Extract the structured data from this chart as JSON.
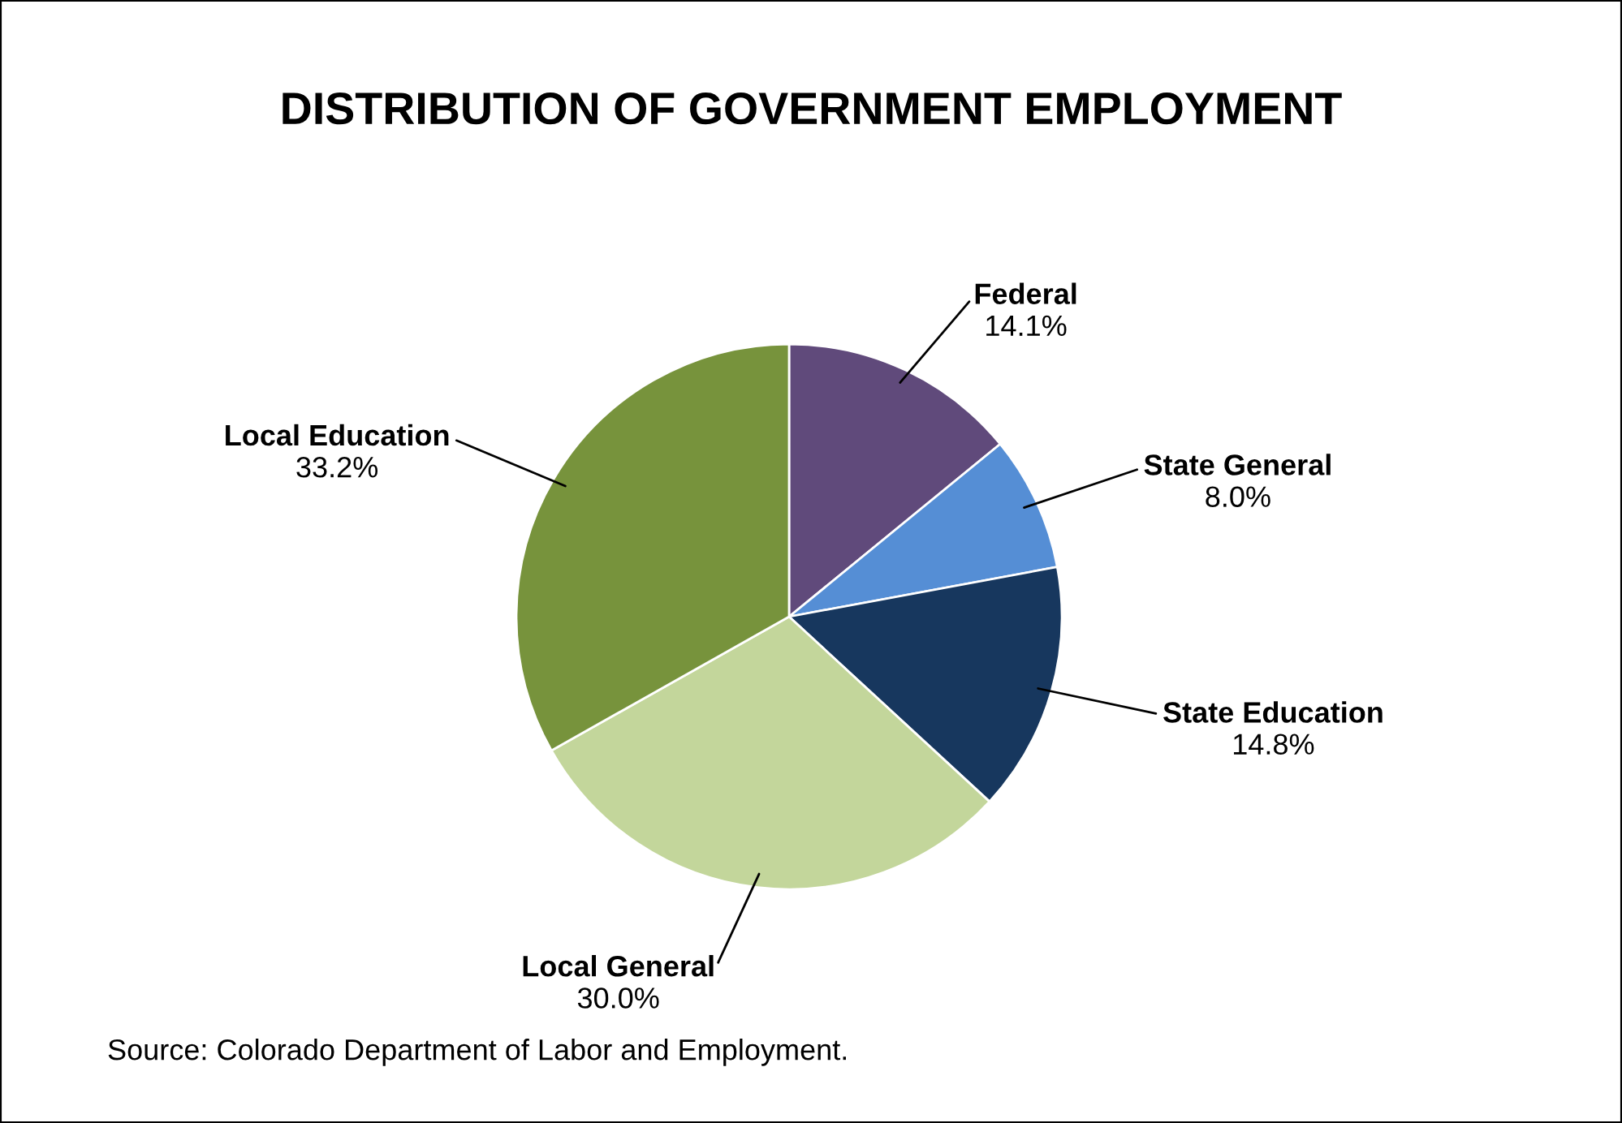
{
  "chart_data": {
    "type": "pie",
    "title": "DISTRIBUTION OF GOVERNMENT EMPLOYMENT",
    "categories": [
      "Federal",
      "State General",
      "State Education",
      "Local General",
      "Local Education"
    ],
    "values": [
      14.1,
      8.0,
      14.8,
      30.0,
      33.2
    ],
    "value_labels": [
      "14.1%",
      "8.0%",
      "14.8%",
      "30.0%",
      "33.2%"
    ],
    "colors": [
      "#604a7b",
      "#558ed5",
      "#17375e",
      "#c3d69b",
      "#77933c"
    ],
    "annotations": [
      "Source: Colorado Department of Labor and Employment."
    ],
    "legend": false
  }
}
